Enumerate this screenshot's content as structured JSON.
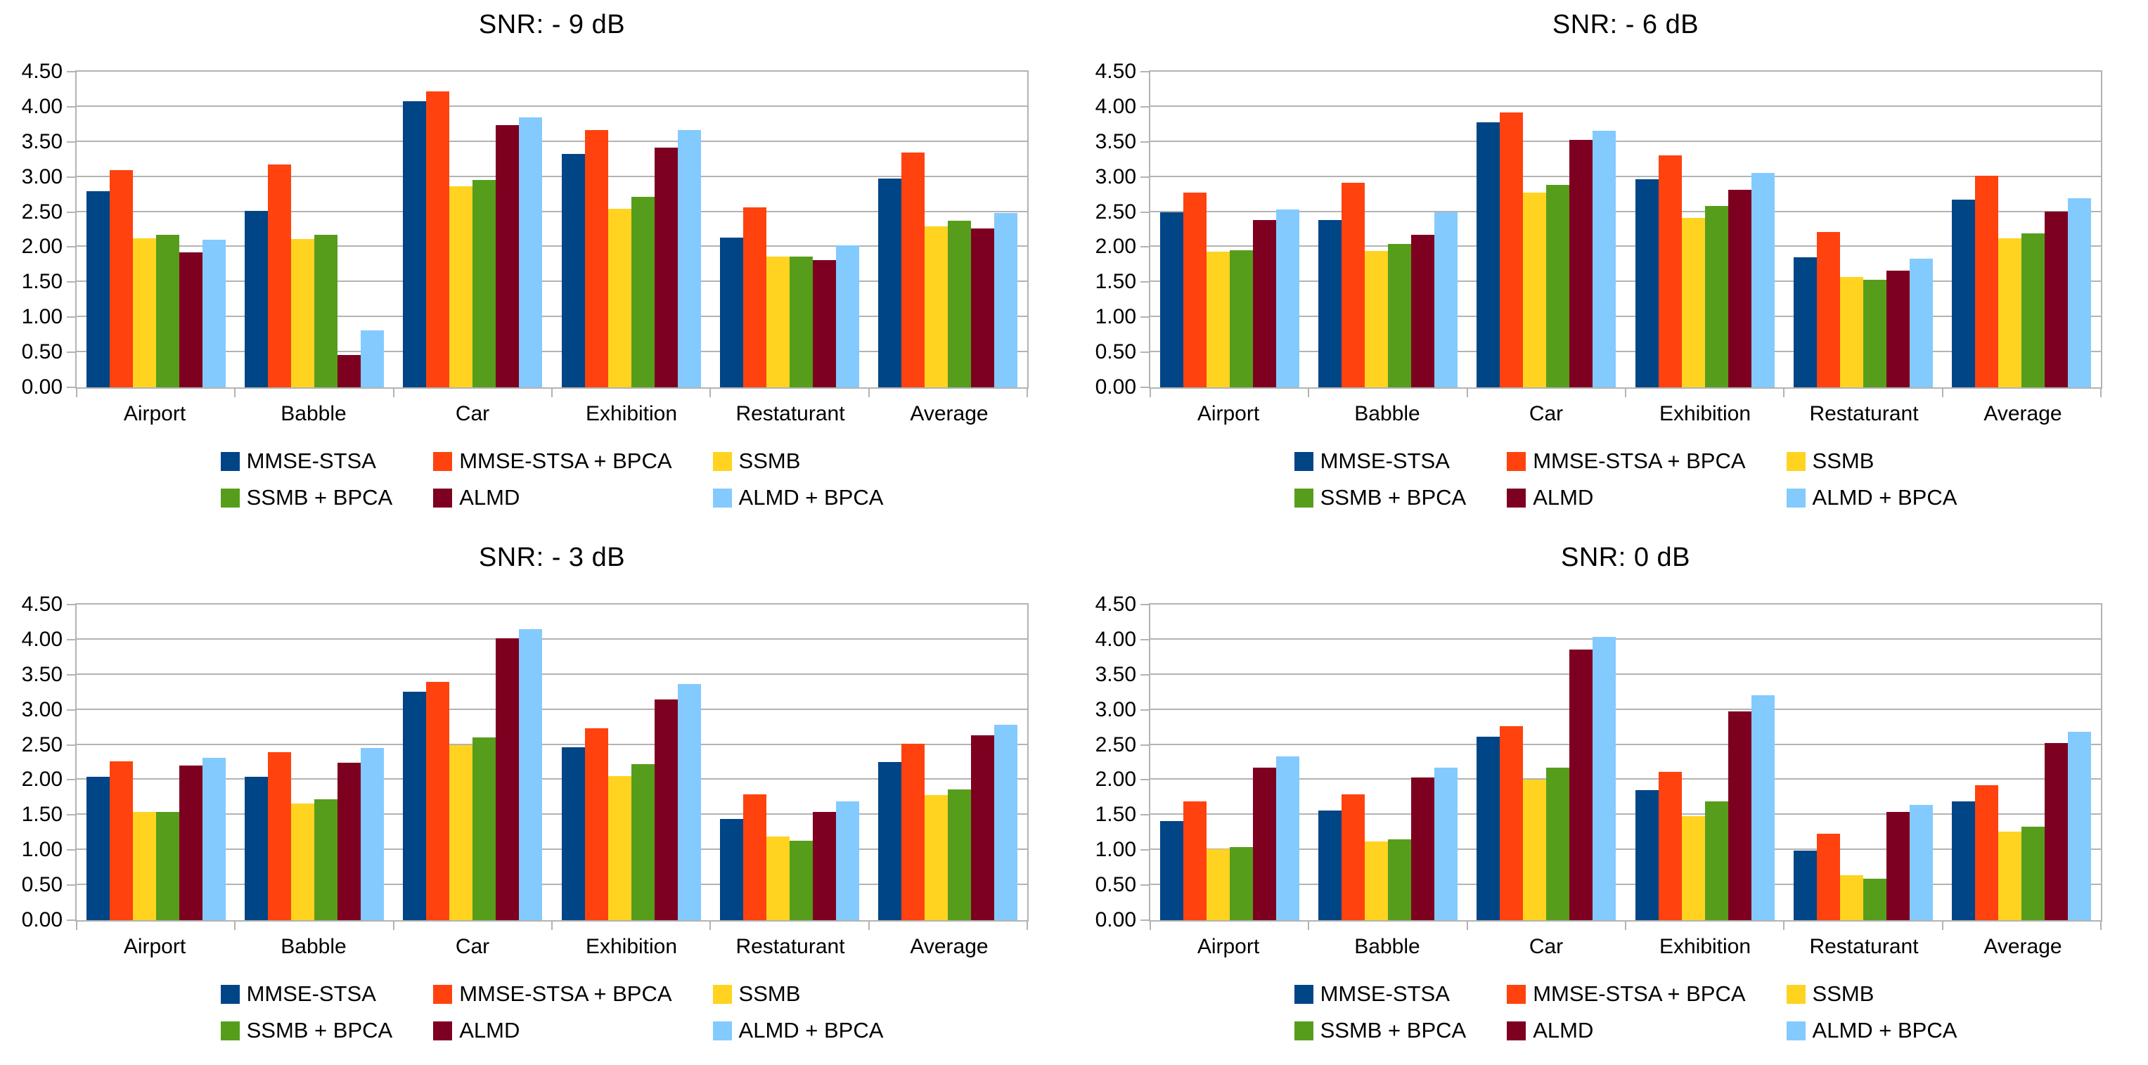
{
  "page": {
    "background": "#ffffff",
    "gridline_color": "#b3b3b3",
    "text_color": "#000000"
  },
  "series_colors": [
    "#004586",
    "#FF420E",
    "#FFD320",
    "#579D1C",
    "#7E0021",
    "#83CAFF"
  ],
  "chart_data": [
    {
      "type": "bar",
      "title": "SNR: - 9 dB",
      "xlabel": "",
      "ylabel": "",
      "ylim": [
        0,
        4.5
      ],
      "ytick_step": 0.5,
      "grid": "horizontal",
      "legend_position": "bottom",
      "categories": [
        "Airport",
        "Babble",
        "Car",
        "Exhibition",
        "Restaturant",
        "Average"
      ],
      "series": [
        {
          "name": "MMSE-STSA",
          "color": "#004586",
          "values": [
            2.8,
            2.52,
            4.08,
            3.33,
            2.13,
            2.98
          ]
        },
        {
          "name": "MMSE-STSA + BPCA",
          "color": "#FF420E",
          "values": [
            3.1,
            3.18,
            4.22,
            3.67,
            2.57,
            3.35
          ]
        },
        {
          "name": "SSMB",
          "color": "#FFD320",
          "values": [
            2.12,
            2.11,
            2.87,
            2.55,
            1.86,
            2.3
          ]
        },
        {
          "name": "SSMB + BPCA",
          "color": "#579D1C",
          "values": [
            2.18,
            2.17,
            2.96,
            2.72,
            1.86,
            2.38
          ]
        },
        {
          "name": "ALMD",
          "color": "#7E0021",
          "values": [
            1.92,
            0.46,
            3.74,
            3.42,
            1.81,
            2.27
          ]
        },
        {
          "name": "ALMD + BPCA",
          "color": "#83CAFF",
          "values": [
            2.1,
            0.81,
            3.85,
            3.67,
            2.02,
            2.49
          ]
        }
      ]
    },
    {
      "type": "bar",
      "title": "SNR: - 6 dB",
      "xlabel": "",
      "ylabel": "",
      "ylim": [
        0,
        4.5
      ],
      "ytick_step": 0.5,
      "grid": "horizontal",
      "legend_position": "bottom",
      "categories": [
        "Airport",
        "Babble",
        "Car",
        "Exhibition",
        "Restaturant",
        "Average"
      ],
      "series": [
        {
          "name": "MMSE-STSA",
          "color": "#004586",
          "values": [
            2.5,
            2.39,
            3.78,
            2.97,
            1.85,
            2.68
          ]
        },
        {
          "name": "MMSE-STSA + BPCA",
          "color": "#FF420E",
          "values": [
            2.78,
            2.92,
            3.92,
            3.31,
            2.22,
            3.02
          ]
        },
        {
          "name": "SSMB",
          "color": "#FFD320",
          "values": [
            1.93,
            1.94,
            2.78,
            2.42,
            1.57,
            2.12
          ]
        },
        {
          "name": "SSMB + BPCA",
          "color": "#579D1C",
          "values": [
            1.95,
            2.04,
            2.89,
            2.59,
            1.53,
            2.2
          ]
        },
        {
          "name": "ALMD",
          "color": "#7E0021",
          "values": [
            2.39,
            2.17,
            3.53,
            2.82,
            1.66,
            2.51
          ]
        },
        {
          "name": "ALMD + BPCA",
          "color": "#83CAFF",
          "values": [
            2.54,
            2.5,
            3.66,
            3.06,
            1.83,
            2.7
          ]
        }
      ]
    },
    {
      "type": "bar",
      "title": "SNR: - 3 dB",
      "xlabel": "",
      "ylabel": "",
      "ylim": [
        0,
        4.5
      ],
      "ytick_step": 0.5,
      "grid": "horizontal",
      "legend_position": "bottom",
      "categories": [
        "Airport",
        "Babble",
        "Car",
        "Exhibition",
        "Restaturant",
        "Average"
      ],
      "series": [
        {
          "name": "MMSE-STSA",
          "color": "#004586",
          "values": [
            2.04,
            2.04,
            3.26,
            2.47,
            1.44,
            2.26
          ]
        },
        {
          "name": "MMSE-STSA + BPCA",
          "color": "#FF420E",
          "values": [
            2.27,
            2.4,
            3.4,
            2.74,
            1.79,
            2.52
          ]
        },
        {
          "name": "SSMB",
          "color": "#FFD320",
          "values": [
            1.54,
            1.66,
            2.5,
            2.05,
            1.19,
            1.78
          ]
        },
        {
          "name": "SSMB + BPCA",
          "color": "#579D1C",
          "values": [
            1.54,
            1.72,
            2.61,
            2.23,
            1.13,
            1.86
          ]
        },
        {
          "name": "ALMD",
          "color": "#7E0021",
          "values": [
            2.21,
            2.25,
            4.02,
            3.15,
            1.54,
            2.64
          ]
        },
        {
          "name": "ALMD + BPCA",
          "color": "#83CAFF",
          "values": [
            2.32,
            2.46,
            4.15,
            3.37,
            1.69,
            2.79
          ]
        }
      ]
    },
    {
      "type": "bar",
      "title": "SNR: 0 dB",
      "xlabel": "",
      "ylabel": "",
      "ylim": [
        0,
        4.5
      ],
      "ytick_step": 0.5,
      "grid": "horizontal",
      "legend_position": "bottom",
      "categories": [
        "Airport",
        "Babble",
        "Car",
        "Exhibition",
        "Restaturant",
        "Average"
      ],
      "series": [
        {
          "name": "MMSE-STSA",
          "color": "#004586",
          "values": [
            1.41,
            1.56,
            2.62,
            1.85,
            0.99,
            1.69
          ]
        },
        {
          "name": "MMSE-STSA + BPCA",
          "color": "#FF420E",
          "values": [
            1.69,
            1.79,
            2.77,
            2.11,
            1.23,
            1.92
          ]
        },
        {
          "name": "SSMB",
          "color": "#FFD320",
          "values": [
            1.01,
            1.12,
            2.0,
            1.48,
            0.64,
            1.26
          ]
        },
        {
          "name": "SSMB + BPCA",
          "color": "#579D1C",
          "values": [
            1.04,
            1.15,
            2.17,
            1.69,
            0.59,
            1.33
          ]
        },
        {
          "name": "ALMD",
          "color": "#7E0021",
          "values": [
            2.17,
            2.03,
            3.86,
            2.98,
            1.54,
            2.53
          ]
        },
        {
          "name": "ALMD + BPCA",
          "color": "#83CAFF",
          "values": [
            2.34,
            2.17,
            4.04,
            3.21,
            1.64,
            2.69
          ]
        }
      ]
    }
  ]
}
